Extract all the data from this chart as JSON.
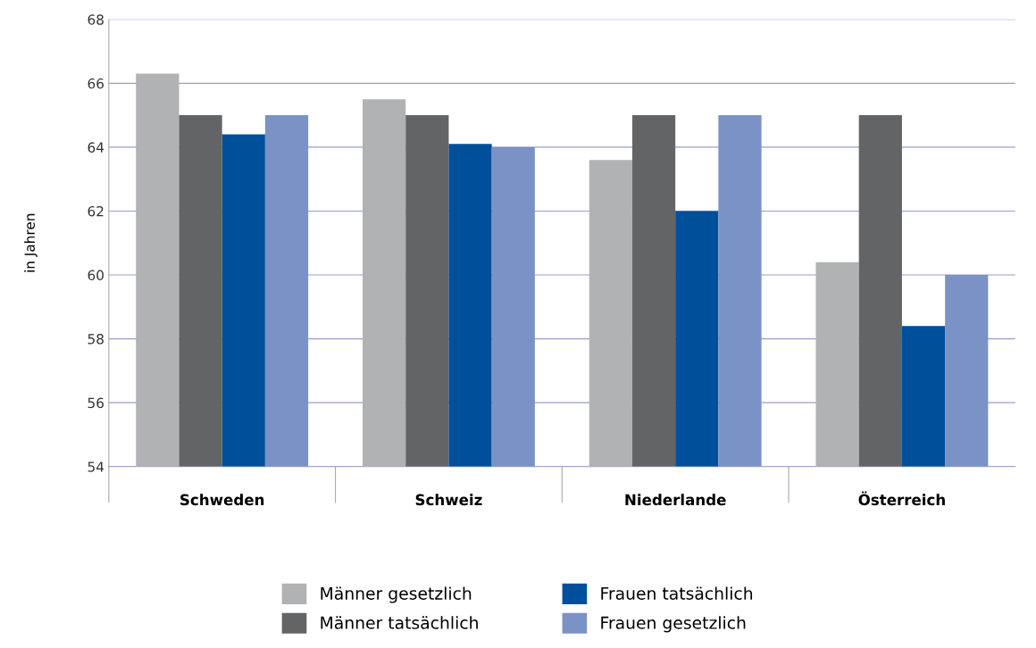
{
  "chart_data": {
    "type": "bar",
    "ylabel": "in Jahren",
    "categories": [
      "Schweden",
      "Schweiz",
      "Niederlande",
      "Österreich"
    ],
    "series": [
      {
        "name": "Männer gesetzlich",
        "color": "#b1b2b4",
        "values": [
          66.3,
          65.5,
          63.6,
          60.4
        ]
      },
      {
        "name": "Männer tatsächlich",
        "color": "#636466",
        "values": [
          65,
          65,
          65,
          65
        ]
      },
      {
        "name": "Frauen tatsächlich",
        "color": "#004f9b",
        "values": [
          64.4,
          64.1,
          62,
          58.4
        ]
      },
      {
        "name": "Frauen gesetzlich",
        "color": "#7a92c5",
        "values": [
          65,
          64,
          65,
          60
        ]
      }
    ],
    "ylim": [
      54,
      68
    ],
    "yticks": [
      54,
      56,
      58,
      60,
      62,
      64,
      66,
      68
    ],
    "grid": "y",
    "legend": "bottom"
  }
}
